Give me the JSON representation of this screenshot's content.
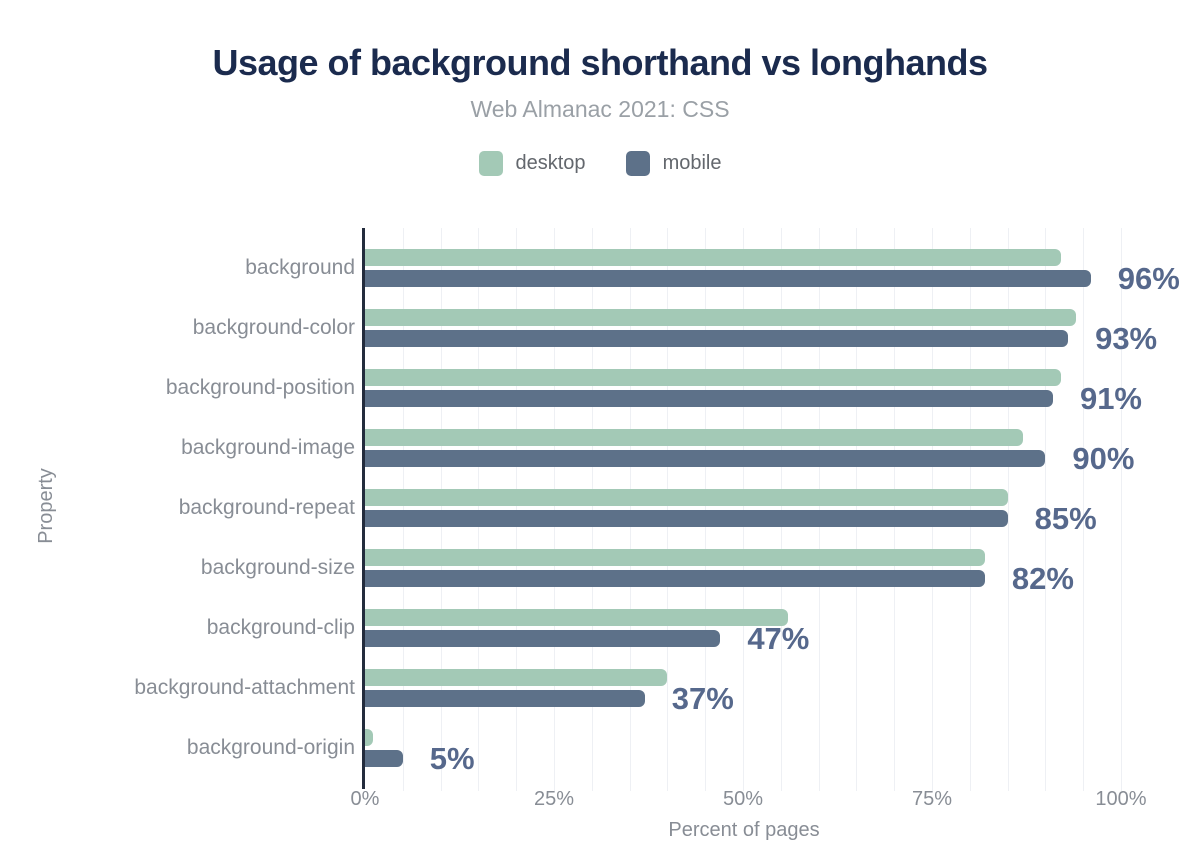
{
  "header": {
    "title": "Usage of background shorthand vs longhands",
    "subtitle": "Web Almanac 2021: CSS"
  },
  "legend": {
    "position": "top",
    "items": [
      {
        "label": "desktop",
        "color": "#a3c9b6"
      },
      {
        "label": "mobile",
        "color": "#5d7189"
      }
    ]
  },
  "chart_data": {
    "type": "bar",
    "orientation": "horizontal",
    "title": "Usage of background shorthand vs longhands",
    "subtitle": "Web Almanac 2021: CSS",
    "xlabel": "Percent of pages",
    "ylabel": "Property",
    "xlim": [
      0,
      100
    ],
    "x_ticks": [
      "0%",
      "25%",
      "50%",
      "75%",
      "100%"
    ],
    "grid": "vertical gridlines every 5%",
    "legend_position": "top",
    "categories": [
      "background",
      "background-color",
      "background-position",
      "background-image",
      "background-repeat",
      "background-size",
      "background-clip",
      "background-attachment",
      "background-origin"
    ],
    "series": [
      {
        "name": "desktop",
        "color": "#a3c9b6",
        "values": [
          92,
          94,
          92,
          87,
          85,
          82,
          56,
          40,
          1
        ]
      },
      {
        "name": "mobile",
        "color": "#5d7189",
        "values": [
          96,
          93,
          91,
          90,
          85,
          82,
          47,
          37,
          5
        ]
      }
    ],
    "value_labels": {
      "series": "mobile",
      "labels": [
        "96%",
        "93%",
        "91%",
        "90%",
        "85%",
        "82%",
        "47%",
        "37%",
        "5%"
      ],
      "color": "#56688c"
    }
  },
  "colors": {
    "background": "#ffffff",
    "title_text": "#1b2b4e",
    "subtitle_text": "#9aa0a6",
    "axis_text": "#888d95",
    "legend_text": "#63676d",
    "gridline": "#eef0f4",
    "axis_line": "#232c3d"
  }
}
